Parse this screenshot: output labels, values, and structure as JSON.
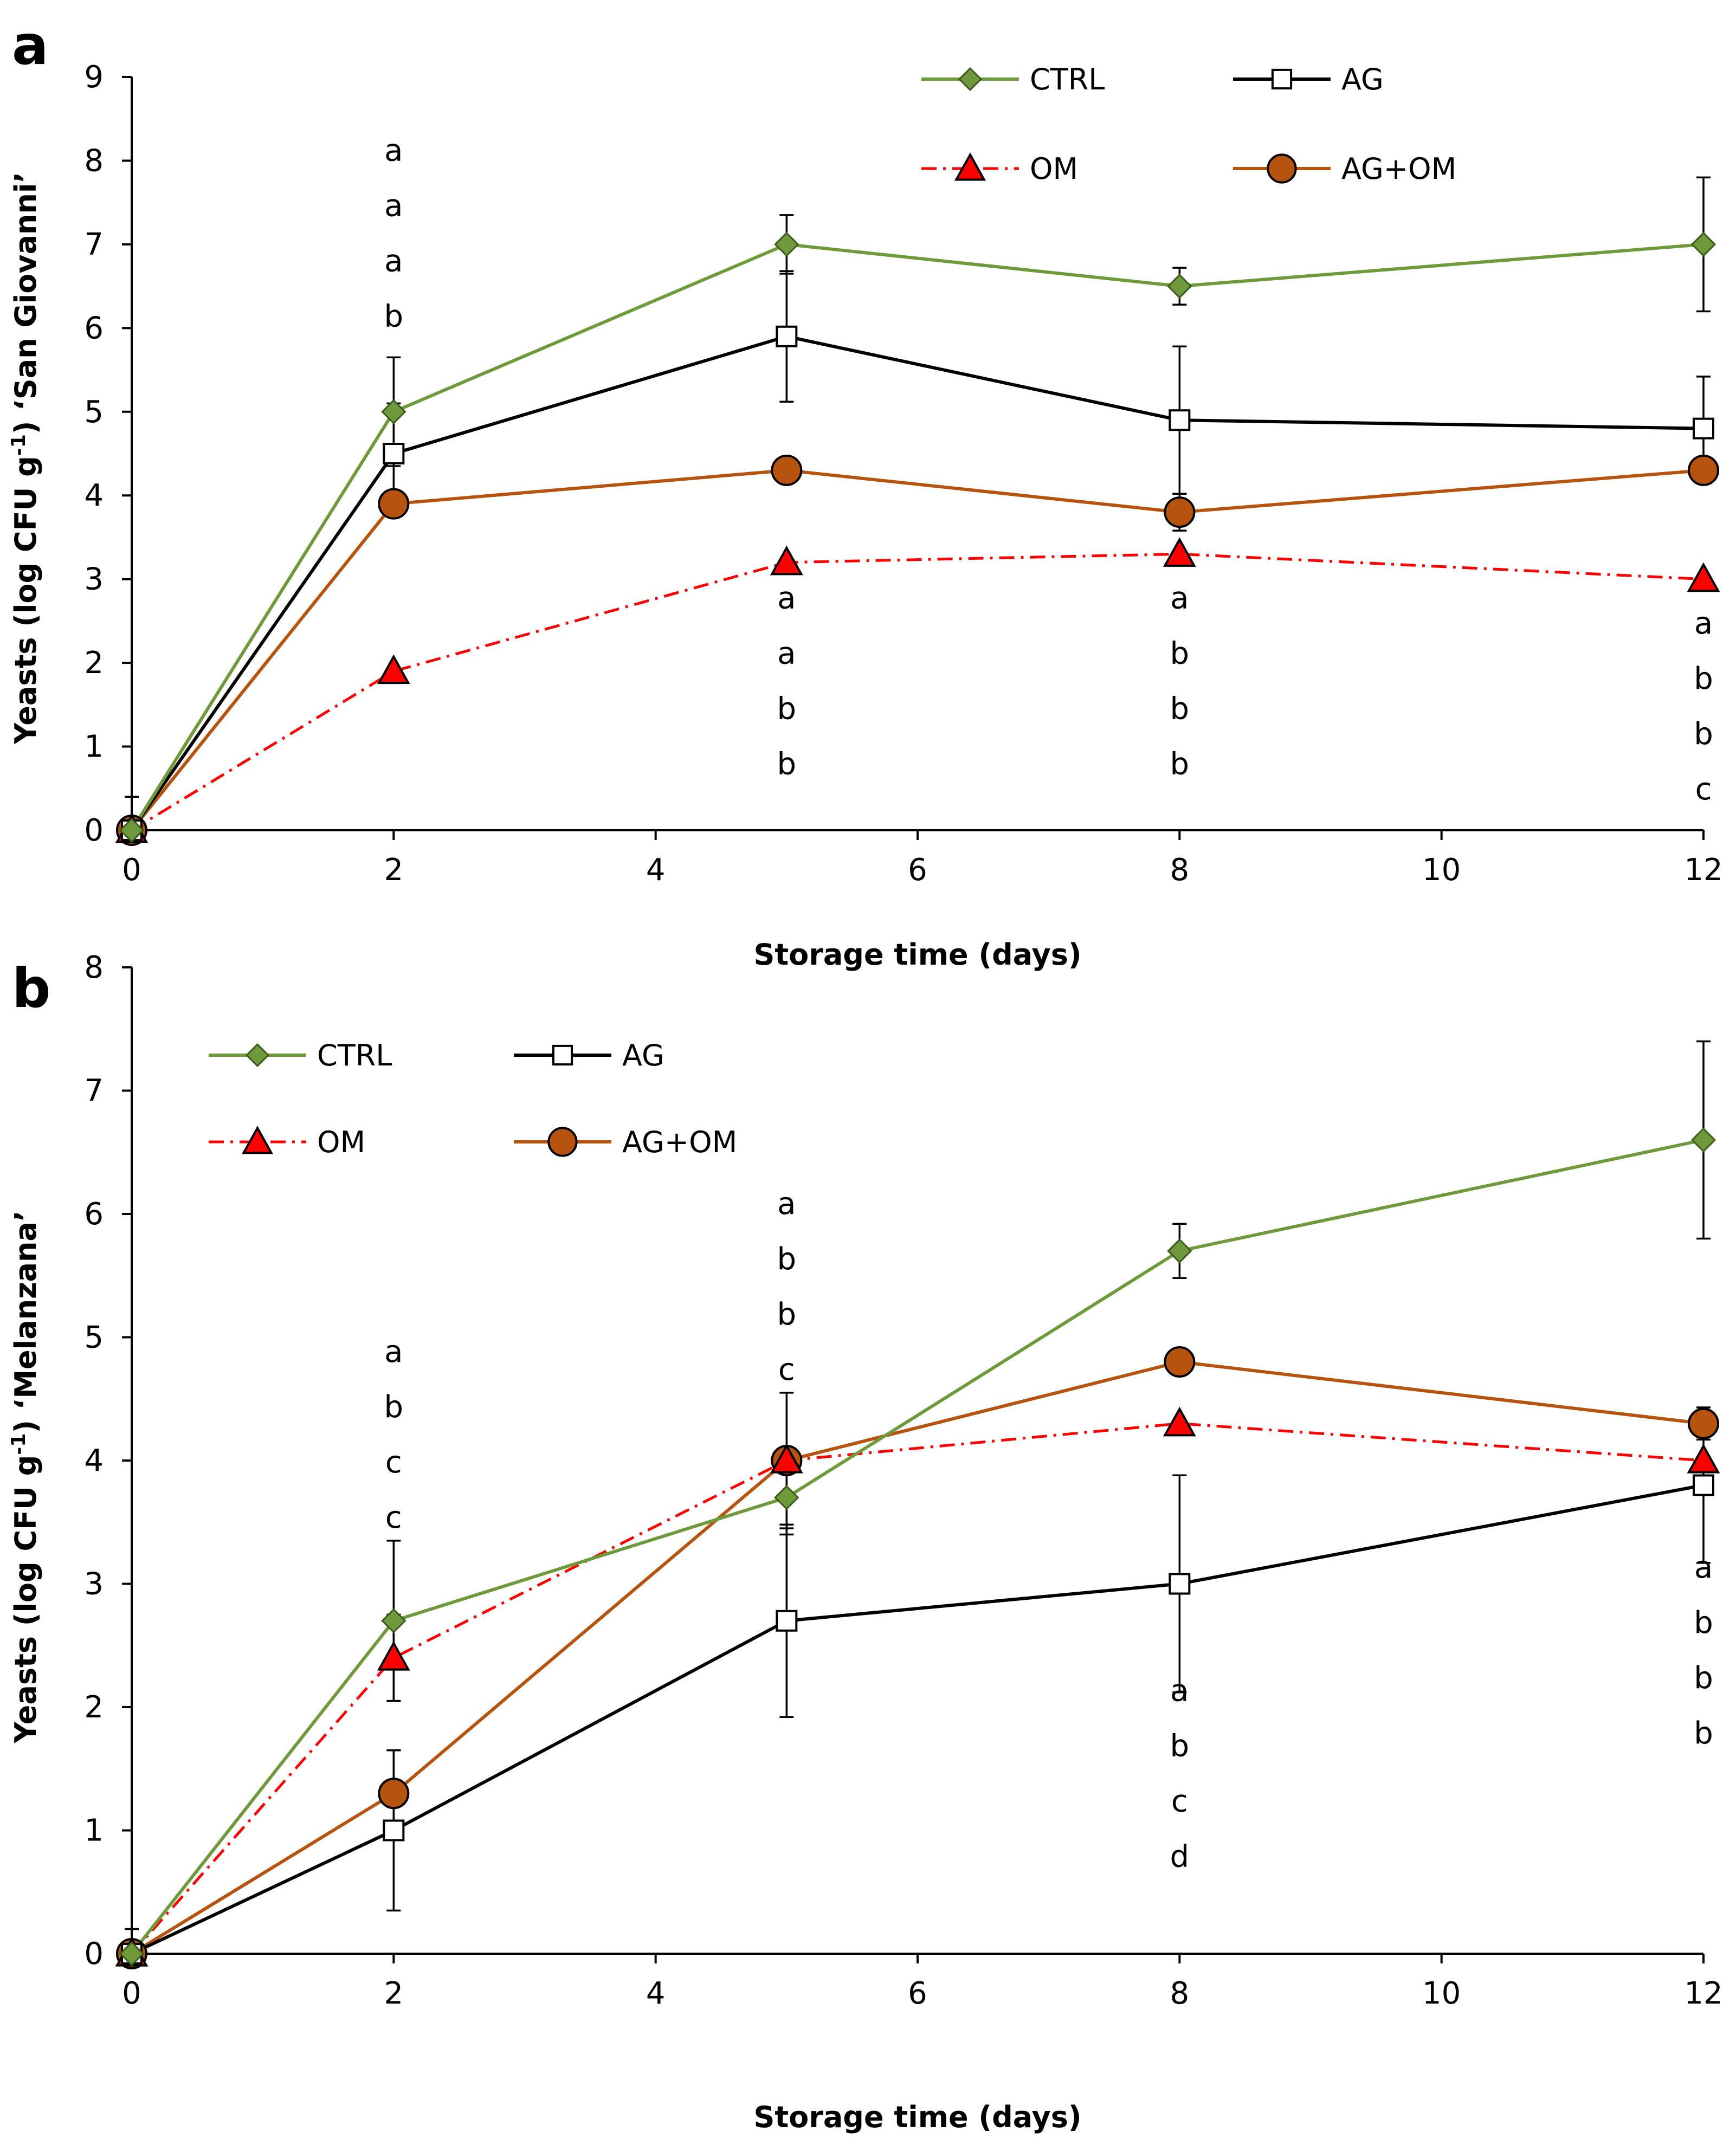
{
  "colors": {
    "CTRL": "#6f9a3b",
    "AG": "#000000",
    "OM": "#ff0000",
    "OM_fill": "#ff0000",
    "AG+OM": "#b5530f",
    "AG+OM_fill": "#b5530f"
  },
  "chart_data": [
    {
      "type": "line",
      "panel_label": "a",
      "xlabel": "Storage time (days)",
      "ylabel": "Yeasts (log CFU g-1) ‘San Giovanni’",
      "ylabel_parts": {
        "pre": "Yeasts (log CFU g",
        "sup": "-1",
        "post": ") ‘San Giovanni’"
      },
      "xlim": [
        0,
        12
      ],
      "ylim": [
        0,
        9
      ],
      "x_ticks": [
        0,
        2,
        4,
        6,
        8,
        10,
        12
      ],
      "y_ticks": [
        0,
        1,
        2,
        3,
        4,
        5,
        6,
        7,
        8,
        9
      ],
      "x": [
        0,
        2,
        5,
        8,
        12
      ],
      "legend": [
        "CTRL",
        "AG",
        "OM",
        "AG+OM"
      ],
      "legend_position": "top-right",
      "series": [
        {
          "name": "CTRL",
          "marker": "diamond",
          "line": "solid",
          "values": [
            0,
            5.0,
            7.0,
            6.5,
            7.0
          ],
          "errors": [
            0,
            0.65,
            0.35,
            0.22,
            0.8
          ]
        },
        {
          "name": "AG",
          "marker": "square-open",
          "line": "solid",
          "values": [
            0,
            4.5,
            5.9,
            4.9,
            4.8
          ],
          "errors": [
            0.4,
            0.6,
            0.78,
            0.88,
            0.62
          ]
        },
        {
          "name": "OM",
          "marker": "triangle",
          "line": "dashdot",
          "values": [
            0,
            1.9,
            3.2,
            3.3,
            3.0
          ],
          "errors": [
            0,
            0,
            0,
            0,
            0
          ]
        },
        {
          "name": "AG+OM",
          "marker": "circle",
          "line": "solid",
          "values": [
            0,
            3.9,
            4.3,
            3.8,
            4.3
          ],
          "errors": [
            0,
            0,
            0,
            0.22,
            0
          ]
        }
      ],
      "annotations": [
        {
          "x": 2,
          "y_top": 8.0,
          "letters": [
            "a",
            "a",
            "a",
            "b"
          ]
        },
        {
          "x": 5,
          "y_top": 2.65,
          "letters": [
            "a",
            "a",
            "b",
            "b"
          ]
        },
        {
          "x": 8,
          "y_top": 2.65,
          "letters": [
            "a",
            "b",
            "b",
            "b"
          ]
        },
        {
          "x": 12,
          "y_top": 2.35,
          "letters": [
            "a",
            "b",
            "b",
            "c"
          ]
        }
      ]
    },
    {
      "type": "line",
      "panel_label": "b",
      "xlabel": "Storage time (days)",
      "ylabel": "Yeasts (log CFU g-1) ‘Melanzana’",
      "ylabel_parts": {
        "pre": "Yeasts (log CFU g",
        "sup": "-1",
        "post": ") ‘Melanzana’"
      },
      "xlim": [
        0,
        12
      ],
      "ylim": [
        0,
        8
      ],
      "x_ticks": [
        0,
        2,
        4,
        6,
        8,
        10,
        12
      ],
      "y_ticks": [
        0,
        1,
        2,
        3,
        4,
        5,
        6,
        7,
        8
      ],
      "x": [
        0,
        2,
        5,
        8,
        12
      ],
      "legend": [
        "CTRL",
        "AG",
        "OM",
        "AG+OM"
      ],
      "legend_position": "top-left",
      "series": [
        {
          "name": "CTRL",
          "marker": "diamond",
          "line": "solid",
          "values": [
            0,
            2.7,
            3.7,
            5.7,
            6.6
          ],
          "errors": [
            0,
            0.65,
            0.3,
            0.22,
            0.8
          ]
        },
        {
          "name": "AG",
          "marker": "square-open",
          "line": "solid",
          "values": [
            0,
            1.0,
            2.7,
            3.0,
            3.8
          ],
          "errors": [
            0.2,
            0.65,
            0.78,
            0.88,
            0.63
          ]
        },
        {
          "name": "OM",
          "marker": "triangle",
          "line": "dashdot",
          "values": [
            0,
            2.4,
            4.0,
            4.3,
            4.0
          ],
          "errors": [
            0,
            0.35,
            0.55,
            0,
            0
          ]
        },
        {
          "name": "AG+OM",
          "marker": "circle",
          "line": "solid",
          "values": [
            0,
            1.3,
            4.0,
            4.8,
            4.3
          ],
          "errors": [
            0,
            0.35,
            0,
            0,
            0.13
          ]
        }
      ],
      "annotations": [
        {
          "x": 2,
          "y_top": 4.8,
          "letters": [
            "a",
            "b",
            "c",
            "c"
          ]
        },
        {
          "x": 5,
          "y_top": 6.0,
          "letters": [
            "a",
            "b",
            "b",
            "c"
          ]
        },
        {
          "x": 8,
          "y_top": 2.05,
          "letters": [
            "a",
            "b",
            "c",
            "d"
          ]
        },
        {
          "x": 12,
          "y_top": 3.05,
          "letters": [
            "a",
            "b",
            "b",
            "b"
          ]
        }
      ]
    }
  ]
}
